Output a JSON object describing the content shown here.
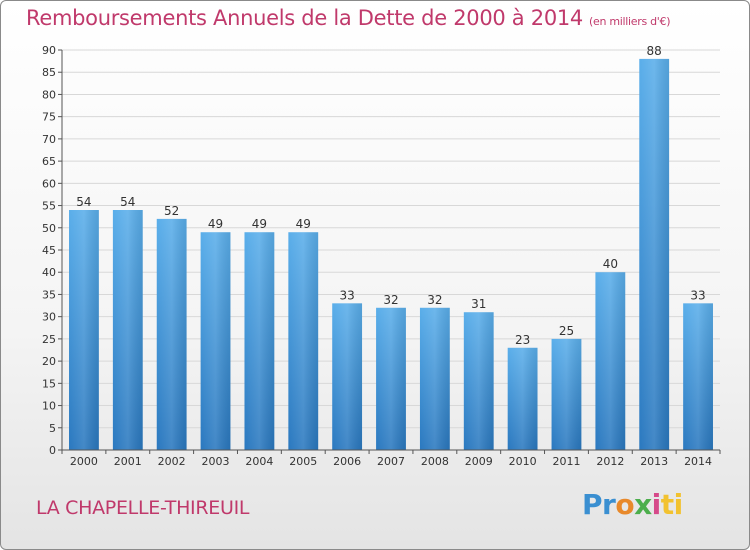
{
  "chart_data": {
    "type": "bar",
    "title": "Remboursements Annuels de la Dette de 2000 à 2014",
    "subtitle": "(en milliers d'€)",
    "categories": [
      "2000",
      "2001",
      "2002",
      "2003",
      "2004",
      "2005",
      "2006",
      "2007",
      "2008",
      "2009",
      "2010",
      "2011",
      "2012",
      "2013",
      "2014"
    ],
    "values": [
      54,
      54,
      52,
      49,
      49,
      49,
      33,
      32,
      32,
      31,
      23,
      25,
      40,
      88,
      33
    ],
    "ylim": [
      0,
      90
    ],
    "yticks": [
      0,
      5,
      10,
      15,
      20,
      25,
      30,
      35,
      40,
      45,
      50,
      55,
      60,
      65,
      70,
      75,
      80,
      85,
      90
    ],
    "grid": true,
    "bar_color": "#4a9fe0",
    "bar_color_dark": "#2a78bf"
  },
  "footer": {
    "city": "LA CHAPELLE-THIREUIL",
    "logo_parts": [
      "Pr",
      "o",
      "x",
      "i",
      "ti"
    ]
  },
  "colors": {
    "title": "#c0396b"
  }
}
